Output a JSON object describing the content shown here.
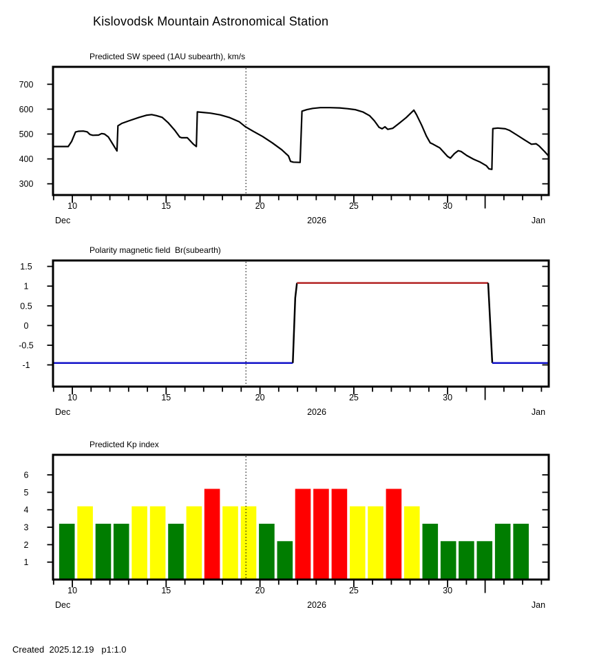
{
  "page": {
    "title": "Kislovodsk Mountain Astronomical Station",
    "created": "Created  2025.12.19   p1:1.0"
  },
  "axis": {
    "x": {
      "domain": [
        8.97,
        35.39
      ],
      "minor_ticks": [
        9,
        10,
        11,
        12,
        13,
        14,
        15,
        16,
        17,
        18,
        19,
        20,
        21,
        22,
        23,
        24,
        25,
        26,
        27,
        28,
        29,
        30,
        31,
        32,
        33,
        34,
        35
      ],
      "major_ticks": [
        10,
        15,
        20,
        25,
        30
      ],
      "major_labels": [
        "10",
        "15",
        "20",
        "25",
        "30"
      ],
      "month_boundary_tick": 32,
      "month_left": "Dec",
      "month_center": "2026",
      "month_right": "Jan"
    },
    "forecast_line_x": 19.25
  },
  "chart_data": [
    {
      "type": "line",
      "title": "Predicted SW speed (1AU subearth), km/s",
      "ylabel": "km/s",
      "ylim": [
        255,
        770
      ],
      "yticks": [
        300,
        400,
        500,
        600,
        700
      ],
      "line_color": "#000000",
      "points": [
        [
          9.0,
          450
        ],
        [
          9.78,
          450
        ],
        [
          9.96,
          470
        ],
        [
          10.17,
          508
        ],
        [
          10.32,
          511
        ],
        [
          10.58,
          512
        ],
        [
          10.79,
          509
        ],
        [
          10.94,
          498
        ],
        [
          11.09,
          495
        ],
        [
          11.4,
          496
        ],
        [
          11.56,
          502
        ],
        [
          11.71,
          500
        ],
        [
          11.92,
          488
        ],
        [
          12.12,
          464
        ],
        [
          12.38,
          432
        ],
        [
          12.43,
          533
        ],
        [
          12.64,
          543
        ],
        [
          13.05,
          554
        ],
        [
          13.56,
          567
        ],
        [
          13.97,
          576
        ],
        [
          14.23,
          578
        ],
        [
          14.48,
          574
        ],
        [
          14.79,
          567
        ],
        [
          15.1,
          546
        ],
        [
          15.46,
          515
        ],
        [
          15.72,
          488
        ],
        [
          15.82,
          485
        ],
        [
          16.13,
          485
        ],
        [
          16.44,
          460
        ],
        [
          16.61,
          450
        ],
        [
          16.66,
          589
        ],
        [
          16.95,
          587
        ],
        [
          17.36,
          584
        ],
        [
          17.88,
          577
        ],
        [
          18.39,
          566
        ],
        [
          18.9,
          549
        ],
        [
          19.21,
          530
        ],
        [
          19.62,
          512
        ],
        [
          20.14,
          490
        ],
        [
          20.65,
          465
        ],
        [
          21.16,
          437
        ],
        [
          21.52,
          412
        ],
        [
          21.63,
          390
        ],
        [
          21.78,
          387
        ],
        [
          22.14,
          386
        ],
        [
          22.24,
          592
        ],
        [
          22.5,
          598
        ],
        [
          22.81,
          603
        ],
        [
          23.22,
          606
        ],
        [
          23.73,
          606
        ],
        [
          24.25,
          605
        ],
        [
          24.66,
          602
        ],
        [
          25.07,
          598
        ],
        [
          25.48,
          589
        ],
        [
          25.84,
          574
        ],
        [
          26.1,
          553
        ],
        [
          26.35,
          527
        ],
        [
          26.51,
          521
        ],
        [
          26.66,
          529
        ],
        [
          26.81,
          519
        ],
        [
          27.07,
          523
        ],
        [
          27.43,
          544
        ],
        [
          27.79,
          566
        ],
        [
          28.05,
          585
        ],
        [
          28.2,
          596
        ],
        [
          28.35,
          577
        ],
        [
          28.61,
          537
        ],
        [
          28.87,
          492
        ],
        [
          29.07,
          465
        ],
        [
          29.23,
          459
        ],
        [
          29.59,
          444
        ],
        [
          30.0,
          410
        ],
        [
          30.15,
          403
        ],
        [
          30.36,
          421
        ],
        [
          30.56,
          433
        ],
        [
          30.72,
          430
        ],
        [
          31.02,
          414
        ],
        [
          31.38,
          399
        ],
        [
          31.74,
          387
        ],
        [
          32.06,
          373
        ],
        [
          32.21,
          360
        ],
        [
          32.36,
          358
        ],
        [
          32.41,
          522
        ],
        [
          32.67,
          524
        ],
        [
          33.08,
          521
        ],
        [
          33.29,
          515
        ],
        [
          33.7,
          496
        ],
        [
          34.11,
          476
        ],
        [
          34.47,
          459
        ],
        [
          34.72,
          461
        ],
        [
          34.88,
          452
        ],
        [
          35.19,
          428
        ],
        [
          35.39,
          411
        ]
      ]
    },
    {
      "type": "step-line",
      "title": "Polarity magnetic field  Br(subearth)",
      "ylim": [
        -1.55,
        1.65
      ],
      "yticks": [
        -1,
        -0.5,
        0,
        0.5,
        1,
        1.5
      ],
      "ytick_labels": [
        "-1",
        "-0.5",
        "0",
        "0.5",
        "1",
        "1.5"
      ],
      "negative_color": "#1010C8",
      "positive_color": "#B22222",
      "segments": [
        {
          "name": "negative-polarity",
          "color": "#1010C8",
          "points": [
            [
              8.97,
              -0.95
            ],
            [
              21.75,
              -0.95
            ]
          ]
        },
        {
          "name": "transition-up",
          "color": "#000000",
          "points": [
            [
              21.75,
              -0.95
            ],
            [
              21.88,
              0.7
            ],
            [
              21.97,
              1.08
            ]
          ]
        },
        {
          "name": "positive-polarity",
          "color": "#B22222",
          "points": [
            [
              21.97,
              1.08
            ],
            [
              32.16,
              1.08
            ]
          ]
        },
        {
          "name": "transition-down",
          "color": "#000000",
          "points": [
            [
              32.16,
              1.08
            ],
            [
              32.38,
              -0.95
            ]
          ]
        },
        {
          "name": "negative-polarity-2",
          "color": "#1010C8",
          "points": [
            [
              32.38,
              -0.95
            ],
            [
              35.39,
              -0.95
            ]
          ]
        }
      ]
    },
    {
      "type": "bar",
      "title": "Predicted Kp index",
      "ylim": [
        0,
        7.15
      ],
      "yticks": [
        1,
        2,
        3,
        4,
        5,
        6
      ],
      "bar_width_days": 0.83,
      "palette": {
        "quiet": "#007D00",
        "active": "#FFFF00",
        "storm": "#FF0000"
      },
      "bars": [
        {
          "day": 9.71,
          "kp": 3.2,
          "level": "quiet"
        },
        {
          "day": 10.68,
          "kp": 4.2,
          "level": "active"
        },
        {
          "day": 11.65,
          "kp": 3.2,
          "level": "quiet"
        },
        {
          "day": 12.61,
          "kp": 3.2,
          "level": "quiet"
        },
        {
          "day": 13.58,
          "kp": 4.2,
          "level": "active"
        },
        {
          "day": 14.55,
          "kp": 4.2,
          "level": "active"
        },
        {
          "day": 15.52,
          "kp": 3.2,
          "level": "quiet"
        },
        {
          "day": 16.49,
          "kp": 4.2,
          "level": "active"
        },
        {
          "day": 17.45,
          "kp": 5.2,
          "level": "storm"
        },
        {
          "day": 18.42,
          "kp": 4.2,
          "level": "active"
        },
        {
          "day": 19.39,
          "kp": 4.2,
          "level": "active"
        },
        {
          "day": 20.36,
          "kp": 3.2,
          "level": "quiet"
        },
        {
          "day": 21.33,
          "kp": 2.2,
          "level": "quiet"
        },
        {
          "day": 22.29,
          "kp": 5.2,
          "level": "storm"
        },
        {
          "day": 23.26,
          "kp": 5.2,
          "level": "storm"
        },
        {
          "day": 24.23,
          "kp": 5.2,
          "level": "storm"
        },
        {
          "day": 25.2,
          "kp": 4.2,
          "level": "active"
        },
        {
          "day": 26.16,
          "kp": 4.2,
          "level": "active"
        },
        {
          "day": 27.13,
          "kp": 5.2,
          "level": "storm"
        },
        {
          "day": 28.1,
          "kp": 4.2,
          "level": "active"
        },
        {
          "day": 29.07,
          "kp": 3.2,
          "level": "quiet"
        },
        {
          "day": 30.04,
          "kp": 2.2,
          "level": "quiet"
        },
        {
          "day": 31.0,
          "kp": 2.2,
          "level": "quiet"
        },
        {
          "day": 31.97,
          "kp": 2.2,
          "level": "quiet"
        },
        {
          "day": 32.94,
          "kp": 3.2,
          "level": "quiet"
        },
        {
          "day": 33.91,
          "kp": 3.2,
          "level": "quiet"
        }
      ]
    }
  ]
}
